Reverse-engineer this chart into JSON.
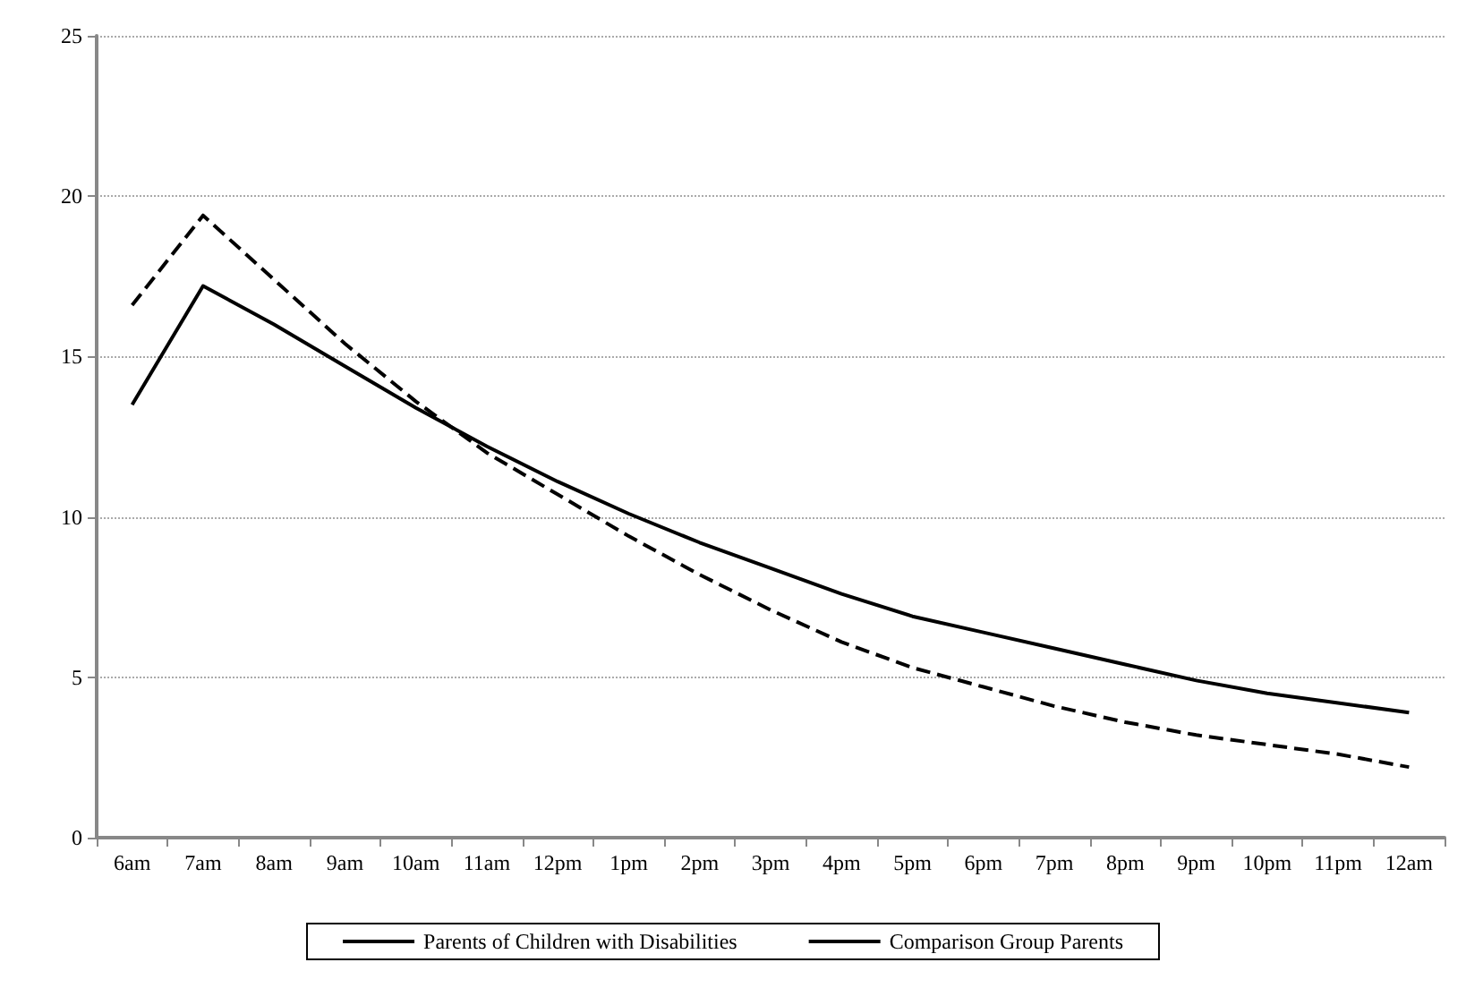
{
  "chart_data": {
    "type": "line",
    "categories": [
      "6am",
      "7am",
      "8am",
      "9am",
      "10am",
      "11am",
      "12pm",
      "1pm",
      "2pm",
      "3pm",
      "4pm",
      "5pm",
      "6pm",
      "7pm",
      "8pm",
      "9pm",
      "10pm",
      "11pm",
      "12am"
    ],
    "series": [
      {
        "name": "Parents of Children with Disabilities",
        "color": "#000000",
        "line_style": "solid",
        "values": [
          13.5,
          17.2,
          16.0,
          14.7,
          13.4,
          12.2,
          11.1,
          10.1,
          9.2,
          8.4,
          7.6,
          6.9,
          6.4,
          5.9,
          5.4,
          4.9,
          4.5,
          4.2,
          3.9
        ]
      },
      {
        "name": "Comparison Group Parents",
        "color": "#000000",
        "line_style": "dashed",
        "values": [
          16.6,
          19.4,
          17.4,
          15.4,
          13.6,
          12.0,
          10.7,
          9.4,
          8.2,
          7.1,
          6.1,
          5.3,
          4.7,
          4.1,
          3.6,
          3.2,
          2.9,
          2.6,
          2.2
        ]
      }
    ],
    "ylim": [
      0,
      25
    ],
    "yticks": [
      0,
      5,
      10,
      15,
      20,
      25
    ],
    "grid": "y",
    "legend": "bottom",
    "marker": "none"
  }
}
